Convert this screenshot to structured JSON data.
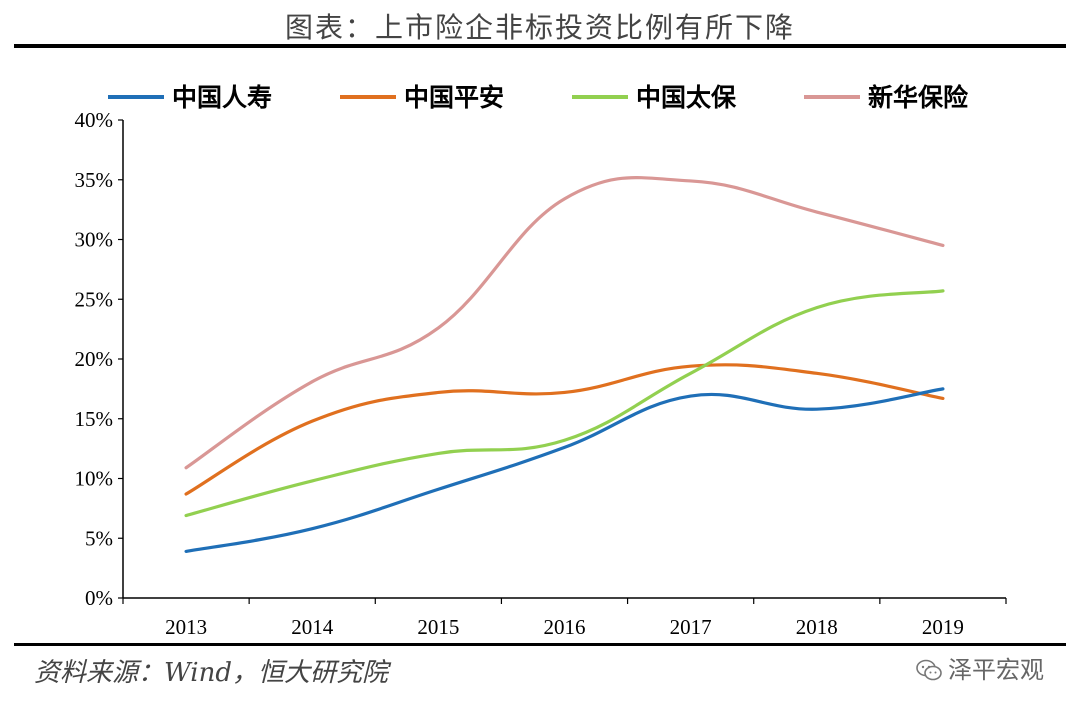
{
  "title": "图表：上市险企非标投资比例有所下降",
  "source": "资料来源：Wind，恒大研究院",
  "watermark": "泽平宏观",
  "wm_icon": "wechat-icon",
  "chart_data": {
    "type": "line",
    "title": "图表：上市险企非标投资比例有所下降",
    "xlabel": "",
    "ylabel": "",
    "x": [
      "2013",
      "2014",
      "2015",
      "2016",
      "2017",
      "2018",
      "2019"
    ],
    "yticks": [
      "0%",
      "5%",
      "10%",
      "15%",
      "20%",
      "25%",
      "30%",
      "35%",
      "40%"
    ],
    "ylim": [
      0,
      40
    ],
    "grid": false,
    "legend_position": "top",
    "series": [
      {
        "name": "中国人寿",
        "color": "#1F6FB7",
        "values": [
          3.9,
          5.8,
          9.1,
          12.6,
          16.9,
          15.8,
          17.5
        ]
      },
      {
        "name": "中国平安",
        "color": "#E0701F",
        "values": [
          8.7,
          14.8,
          17.2,
          17.2,
          19.4,
          18.8,
          16.7
        ]
      },
      {
        "name": "中国太保",
        "color": "#92D050",
        "values": [
          6.9,
          9.8,
          12.1,
          13.2,
          18.8,
          24.3,
          25.7
        ]
      },
      {
        "name": "新华保险",
        "color": "#D99795",
        "values": [
          10.9,
          18.1,
          22.6,
          33.4,
          34.9,
          32.3,
          29.5
        ]
      }
    ]
  }
}
